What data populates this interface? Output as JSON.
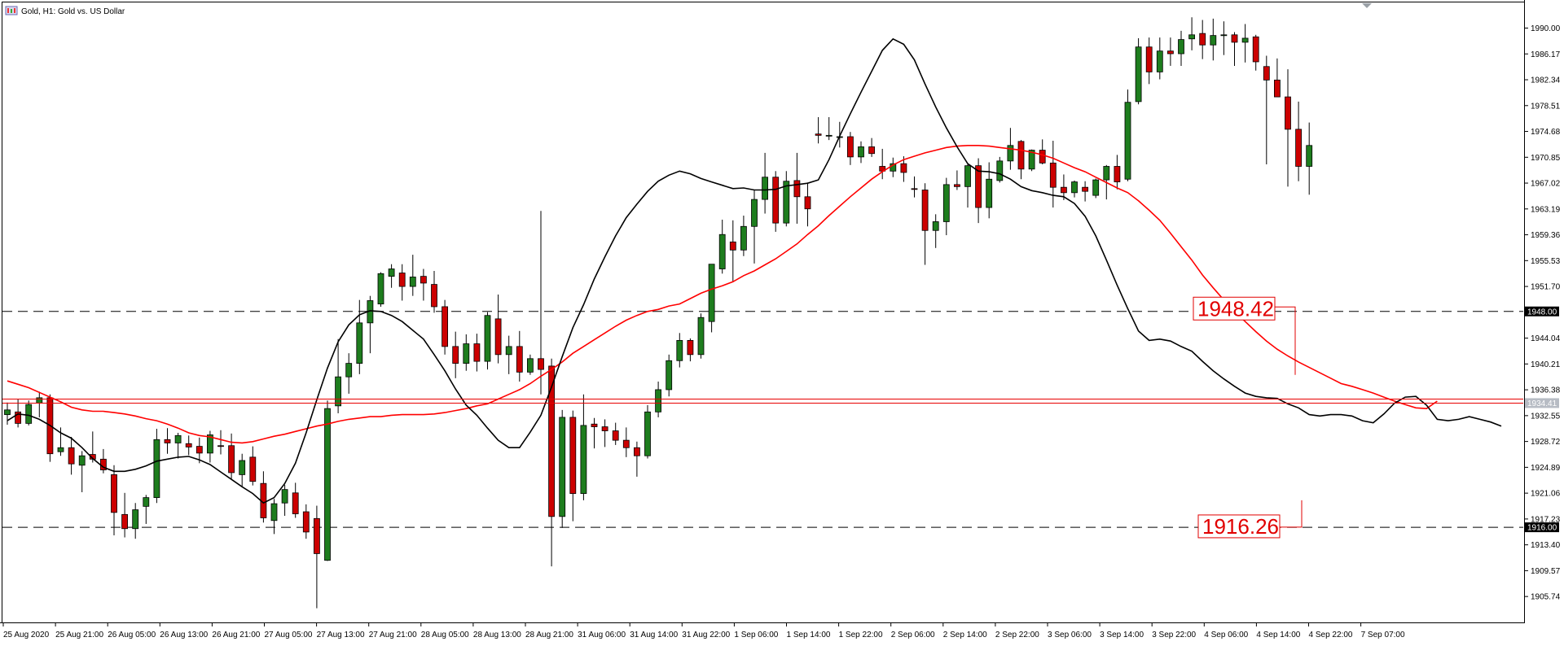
{
  "title": "Gold, H1:  Gold vs. US Dollar",
  "chart_data": {
    "type": "candlestick",
    "symbol": "Gold",
    "timeframe": "H1",
    "description": "Gold vs. US Dollar",
    "y_ticks": [
      "1990.00",
      "1986.17",
      "1982.34",
      "1978.51",
      "1974.68",
      "1970.85",
      "1967.02",
      "1963.19",
      "1959.36",
      "1955.53",
      "1951.70",
      "1944.04",
      "1940.21",
      "1936.38",
      "1932.55",
      "1928.72",
      "1924.89",
      "1921.06",
      "1917.23",
      "1913.40",
      "1909.57",
      "1905.74"
    ],
    "ylim": [
      1901.9,
      1993.8
    ],
    "x_ticks": [
      "25 Aug 2020",
      "25 Aug 21:00",
      "26 Aug 05:00",
      "26 Aug 13:00",
      "26 Aug 21:00",
      "27 Aug 05:00",
      "27 Aug 13:00",
      "27 Aug 21:00",
      "28 Aug 05:00",
      "28 Aug 13:00",
      "28 Aug 21:00",
      "31 Aug 06:00",
      "31 Aug 14:00",
      "31 Aug 22:00",
      "1 Sep 06:00",
      "1 Sep 14:00",
      "1 Sep 22:00",
      "2 Sep 06:00",
      "2 Sep 14:00",
      "2 Sep 22:00",
      "3 Sep 06:00",
      "3 Sep 14:00",
      "3 Sep 22:00",
      "4 Sep 06:00",
      "4 Sep 14:00",
      "4 Sep 22:00",
      "7 Sep 07:00"
    ],
    "current_price": "1934.41",
    "horizontal_levels": [
      {
        "value": 1948.0,
        "label": "1948.00",
        "style": "dashed"
      },
      {
        "value": 1916.0,
        "label": "1916.00",
        "style": "dashed"
      }
    ],
    "annotations": [
      {
        "text": "1948.42",
        "value": 1948.42,
        "color": "#e10000"
      },
      {
        "text": "1916.26",
        "value": 1916.26,
        "color": "#e10000"
      }
    ],
    "colors": {
      "bull": "#1e7d1e",
      "bear": "#cc0000",
      "ma_fast": "#000000",
      "ma_slow": "#ff0000",
      "background": "#ffffff"
    },
    "series": [
      {
        "name": "ma_fast",
        "values": [
          1931.8,
          1932.8,
          1932.6,
          1932.0,
          1931.1,
          1930.0,
          1929.2,
          1927.8,
          1926.2,
          1924.9,
          1924.3,
          1924.3,
          1924.6,
          1925.1,
          1925.8,
          1926.1,
          1926.4,
          1926.5,
          1926.0,
          1925.3,
          1924.2,
          1923.1,
          1922.0,
          1921.0,
          1919.6,
          1920.4,
          1922.5,
          1925.5,
          1930.0,
          1934.9,
          1939.6,
          1943.5,
          1946.0,
          1947.5,
          1948.1,
          1948.0,
          1947.4,
          1946.5,
          1945.2,
          1943.9,
          1941.6,
          1939.2,
          1936.5,
          1934.1,
          1932.6,
          1930.7,
          1928.9,
          1927.8,
          1927.8,
          1930.1,
          1932.6,
          1936.8,
          1941.3,
          1945.6,
          1949.0,
          1952.8,
          1956.1,
          1959.2,
          1961.9,
          1963.9,
          1965.8,
          1967.3,
          1968.2,
          1968.8,
          1968.4,
          1967.7,
          1967.2,
          1966.7,
          1966.2,
          1966.3,
          1966.0,
          1966.0,
          1966.1,
          1966.6,
          1966.8,
          1967.0,
          1967.5,
          1970.5,
          1974.0,
          1977.3,
          1980.5,
          1983.6,
          1986.7,
          1988.4,
          1987.6,
          1985.3,
          1981.7,
          1978.3,
          1975.2,
          1972.4,
          1969.9,
          1968.8,
          1968.7,
          1968.4,
          1967.6,
          1966.5,
          1965.9,
          1965.6,
          1965.2,
          1965.0,
          1964.0,
          1962.1,
          1959.2,
          1955.6,
          1951.9,
          1948.4,
          1945.1,
          1943.7,
          1943.9,
          1943.6,
          1942.8,
          1942.1,
          1940.6,
          1939.2,
          1938.0,
          1936.9,
          1935.9,
          1935.4,
          1935.2,
          1935.1,
          1934.3,
          1933.7,
          1932.7,
          1932.5,
          1932.7,
          1932.7,
          1932.5,
          1931.8,
          1931.5,
          1932.8,
          1934.4,
          1935.3,
          1935.4,
          1934.1,
          1932.0,
          1931.8,
          1932.0,
          1932.4,
          1932.0,
          1931.6,
          1931.0
        ]
      },
      {
        "name": "ma_slow",
        "values": [
          1937.7,
          1937.2,
          1936.7,
          1936.0,
          1935.3,
          1934.6,
          1933.8,
          1933.4,
          1933.2,
          1933.2,
          1933.0,
          1932.8,
          1932.5,
          1932.1,
          1931.8,
          1931.3,
          1930.7,
          1930.0,
          1929.6,
          1929.4,
          1929.0,
          1928.6,
          1928.5,
          1928.7,
          1929.1,
          1929.5,
          1929.8,
          1930.2,
          1930.6,
          1931.0,
          1931.3,
          1931.7,
          1932.0,
          1932.2,
          1932.4,
          1932.4,
          1932.6,
          1932.7,
          1932.7,
          1932.7,
          1932.8,
          1933.0,
          1933.3,
          1933.6,
          1934.0,
          1934.3,
          1935.0,
          1935.7,
          1936.4,
          1937.3,
          1938.4,
          1939.4,
          1940.5,
          1941.8,
          1942.8,
          1943.8,
          1944.8,
          1945.8,
          1946.7,
          1947.4,
          1948.0,
          1948.3,
          1948.8,
          1949.1,
          1949.9,
          1950.7,
          1951.3,
          1951.8,
          1952.4,
          1953.3,
          1954.0,
          1954.9,
          1955.8,
          1956.9,
          1958.0,
          1959.4,
          1960.7,
          1962.2,
          1963.6,
          1965.0,
          1966.3,
          1967.6,
          1968.7,
          1969.7,
          1970.5,
          1971.0,
          1971.5,
          1971.9,
          1972.3,
          1972.5,
          1972.6,
          1972.6,
          1972.5,
          1972.3,
          1972.1,
          1971.9,
          1971.6,
          1971.2,
          1970.7,
          1970.0,
          1969.3,
          1968.7,
          1967.9,
          1967.1,
          1966.3,
          1965.6,
          1964.4,
          1963.0,
          1961.5,
          1959.6,
          1957.6,
          1955.6,
          1953.4,
          1951.5,
          1949.7,
          1948.0,
          1946.5,
          1945.0,
          1943.6,
          1942.4,
          1941.4,
          1940.5,
          1939.7,
          1938.9,
          1938.1,
          1937.3,
          1936.9,
          1936.4,
          1935.9,
          1935.3,
          1934.7,
          1934.2,
          1933.7,
          1933.6,
          1934.7
        ]
      },
      {
        "name": "candles",
        "values": [
          [
            1932.7,
            1934.5,
            1931.2,
            1933.4
          ],
          [
            1933.1,
            1935.0,
            1930.8,
            1931.4
          ],
          [
            1931.4,
            1934.8,
            1931.1,
            1934.2
          ],
          [
            1934.4,
            1936.1,
            1932.3,
            1935.2
          ],
          [
            1935.2,
            1935.7,
            1925.7,
            1926.9
          ],
          [
            1927.2,
            1930.8,
            1926.6,
            1927.8
          ],
          [
            1927.8,
            1929.4,
            1923.8,
            1925.4
          ],
          [
            1925.2,
            1927.3,
            1921.2,
            1926.6
          ],
          [
            1926.8,
            1930.2,
            1925.6,
            1926.1
          ],
          [
            1926.1,
            1927.6,
            1924.0,
            1924.5
          ],
          [
            1923.8,
            1925.2,
            1914.8,
            1918.2
          ],
          [
            1917.9,
            1921.1,
            1914.5,
            1915.8
          ],
          [
            1915.8,
            1919.6,
            1914.3,
            1918.6
          ],
          [
            1919.1,
            1920.8,
            1916.5,
            1920.4
          ],
          [
            1920.4,
            1930.6,
            1919.6,
            1929.0
          ],
          [
            1929.0,
            1930.7,
            1926.9,
            1928.5
          ],
          [
            1928.5,
            1930.0,
            1926.2,
            1929.6
          ],
          [
            1928.4,
            1929.6,
            1926.7,
            1927.9
          ],
          [
            1928.0,
            1929.3,
            1925.5,
            1927.0
          ],
          [
            1927.0,
            1930.3,
            1925.6,
            1929.7
          ],
          [
            1928.1,
            1930.4,
            1926.8,
            1928.0
          ],
          [
            1928.1,
            1929.9,
            1923.1,
            1924.1
          ],
          [
            1923.8,
            1926.9,
            1922.0,
            1925.9
          ],
          [
            1926.4,
            1928.0,
            1922.2,
            1922.8
          ],
          [
            1922.5,
            1924.3,
            1916.7,
            1917.4
          ],
          [
            1917.0,
            1920.2,
            1915.0,
            1919.5
          ],
          [
            1919.6,
            1922.3,
            1917.7,
            1921.6
          ],
          [
            1921.1,
            1922.6,
            1917.4,
            1918.0
          ],
          [
            1918.3,
            1919.4,
            1914.3,
            1915.3
          ],
          [
            1917.3,
            1919.2,
            1904.0,
            1912.1
          ],
          [
            1911.1,
            1934.8,
            1911.0,
            1933.6
          ],
          [
            1934.0,
            1943.9,
            1932.9,
            1938.3
          ],
          [
            1938.3,
            1941.8,
            1935.8,
            1940.3
          ],
          [
            1940.3,
            1949.7,
            1938.7,
            1946.3
          ],
          [
            1946.3,
            1950.3,
            1941.8,
            1949.6
          ],
          [
            1949.1,
            1953.8,
            1948.7,
            1953.6
          ],
          [
            1953.2,
            1955.0,
            1951.5,
            1954.3
          ],
          [
            1953.7,
            1955.0,
            1949.6,
            1951.7
          ],
          [
            1951.7,
            1956.4,
            1950.3,
            1953.1
          ],
          [
            1953.2,
            1954.3,
            1949.6,
            1952.2
          ],
          [
            1952.0,
            1954.0,
            1947.8,
            1948.7
          ],
          [
            1948.7,
            1949.7,
            1941.6,
            1942.8
          ],
          [
            1942.8,
            1945.0,
            1938.1,
            1940.3
          ],
          [
            1940.3,
            1944.6,
            1939.2,
            1943.2
          ],
          [
            1943.2,
            1944.7,
            1939.1,
            1940.6
          ],
          [
            1940.6,
            1947.9,
            1939.4,
            1947.4
          ],
          [
            1946.9,
            1950.5,
            1940.3,
            1941.6
          ],
          [
            1941.6,
            1944.4,
            1938.7,
            1942.8
          ],
          [
            1942.8,
            1945.1,
            1937.6,
            1939.0
          ],
          [
            1939.0,
            1941.6,
            1938.6,
            1941.0
          ],
          [
            1941.0,
            1962.9,
            1935.7,
            1939.4
          ],
          [
            1939.9,
            1941.0,
            1910.2,
            1917.6
          ],
          [
            1917.6,
            1933.4,
            1915.9,
            1932.3
          ],
          [
            1932.3,
            1933.3,
            1916.9,
            1921.0
          ],
          [
            1921.0,
            1935.7,
            1920.0,
            1931.1
          ],
          [
            1931.3,
            1932.2,
            1927.7,
            1930.9
          ],
          [
            1930.9,
            1932.0,
            1927.9,
            1930.3
          ],
          [
            1930.3,
            1931.5,
            1928.2,
            1928.9
          ],
          [
            1928.9,
            1930.8,
            1926.4,
            1927.8
          ],
          [
            1927.8,
            1928.7,
            1923.5,
            1926.6
          ],
          [
            1926.6,
            1934.1,
            1926.2,
            1933.1
          ],
          [
            1933.1,
            1937.6,
            1932.3,
            1936.4
          ],
          [
            1936.4,
            1941.6,
            1935.4,
            1940.7
          ],
          [
            1940.7,
            1944.8,
            1939.7,
            1943.7
          ],
          [
            1943.7,
            1944.0,
            1940.6,
            1941.6
          ],
          [
            1941.6,
            1947.7,
            1941.0,
            1947.1
          ],
          [
            1946.5,
            1954.7,
            1944.9,
            1955.0
          ],
          [
            1954.3,
            1961.6,
            1953.6,
            1959.4
          ],
          [
            1958.3,
            1961.5,
            1952.4,
            1957.1
          ],
          [
            1957.1,
            1962.2,
            1956.2,
            1960.6
          ],
          [
            1960.6,
            1966.0,
            1955.1,
            1964.6
          ],
          [
            1964.6,
            1971.5,
            1962.5,
            1967.9
          ],
          [
            1967.9,
            1968.8,
            1959.8,
            1961.1
          ],
          [
            1961.1,
            1968.8,
            1960.6,
            1967.3
          ],
          [
            1967.4,
            1971.5,
            1961.0,
            1965.0
          ],
          [
            1965.0,
            1967.1,
            1960.6,
            1963.2
          ],
          [
            1974.3,
            1976.8,
            1972.9,
            1974.1
          ],
          [
            1974.1,
            1976.8,
            1973.4,
            1974.1
          ],
          [
            1973.8,
            1976.1,
            1972.3,
            1973.9
          ],
          [
            1973.9,
            1974.6,
            1969.7,
            1970.9
          ],
          [
            1970.9,
            1973.2,
            1970.0,
            1972.4
          ],
          [
            1972.4,
            1973.7,
            1970.9,
            1971.4
          ],
          [
            1969.5,
            1972.1,
            1967.6,
            1968.8
          ],
          [
            1968.8,
            1970.8,
            1967.9,
            1969.9
          ],
          [
            1969.9,
            1971.0,
            1967.2,
            1968.6
          ],
          [
            1966.2,
            1968.0,
            1964.9,
            1966.1
          ],
          [
            1966.0,
            1967.0,
            1954.9,
            1960.0
          ],
          [
            1960.0,
            1962.4,
            1957.4,
            1961.3
          ],
          [
            1961.3,
            1967.8,
            1959.3,
            1966.8
          ],
          [
            1966.8,
            1968.9,
            1966.0,
            1966.5
          ],
          [
            1966.5,
            1969.8,
            1963.4,
            1969.6
          ],
          [
            1969.6,
            1970.7,
            1961.1,
            1963.4
          ],
          [
            1963.4,
            1970.1,
            1961.8,
            1967.6
          ],
          [
            1967.4,
            1970.9,
            1967.1,
            1970.3
          ],
          [
            1970.3,
            1975.2,
            1969.0,
            1972.6
          ],
          [
            1973.2,
            1973.4,
            1967.6,
            1969.1
          ],
          [
            1969.1,
            1972.0,
            1968.8,
            1971.9
          ],
          [
            1971.9,
            1973.5,
            1969.8,
            1970.0
          ],
          [
            1970.0,
            1973.3,
            1963.4,
            1966.4
          ],
          [
            1966.4,
            1968.3,
            1964.5,
            1965.6
          ],
          [
            1965.6,
            1967.4,
            1964.9,
            1967.2
          ],
          [
            1966.4,
            1967.3,
            1964.3,
            1965.8
          ],
          [
            1965.2,
            1967.7,
            1964.8,
            1967.5
          ],
          [
            1967.5,
            1969.7,
            1964.6,
            1969.5
          ],
          [
            1969.5,
            1971.2,
            1966.1,
            1967.2
          ],
          [
            1967.6,
            1980.9,
            1967.3,
            1979.0
          ],
          [
            1979.1,
            1988.5,
            1978.7,
            1987.2
          ],
          [
            1987.2,
            1988.6,
            1981.7,
            1983.5
          ],
          [
            1983.5,
            1988.6,
            1982.4,
            1986.6
          ],
          [
            1986.6,
            1988.6,
            1984.4,
            1986.2
          ],
          [
            1986.2,
            1989.6,
            1984.4,
            1988.3
          ],
          [
            1988.4,
            1991.6,
            1986.7,
            1989.0
          ],
          [
            1989.2,
            1991.2,
            1985.4,
            1987.5
          ],
          [
            1987.5,
            1991.4,
            1985.2,
            1988.9
          ],
          [
            1988.9,
            1991.0,
            1986.0,
            1989.0
          ],
          [
            1989.0,
            1989.4,
            1984.4,
            1987.9
          ],
          [
            1987.9,
            1990.6,
            1984.9,
            1988.5
          ],
          [
            1988.7,
            1989.0,
            1983.7,
            1985.0
          ],
          [
            1984.3,
            1985.9,
            1969.8,
            1982.3
          ],
          [
            1982.3,
            1985.5,
            1979.9,
            1979.8
          ],
          [
            1979.8,
            1983.9,
            1966.5,
            1975.0
          ],
          [
            1975.0,
            1979.1,
            1967.3,
            1969.5
          ],
          [
            1969.5,
            1976.0,
            1965.3,
            1972.6
          ]
        ]
      }
    ]
  }
}
